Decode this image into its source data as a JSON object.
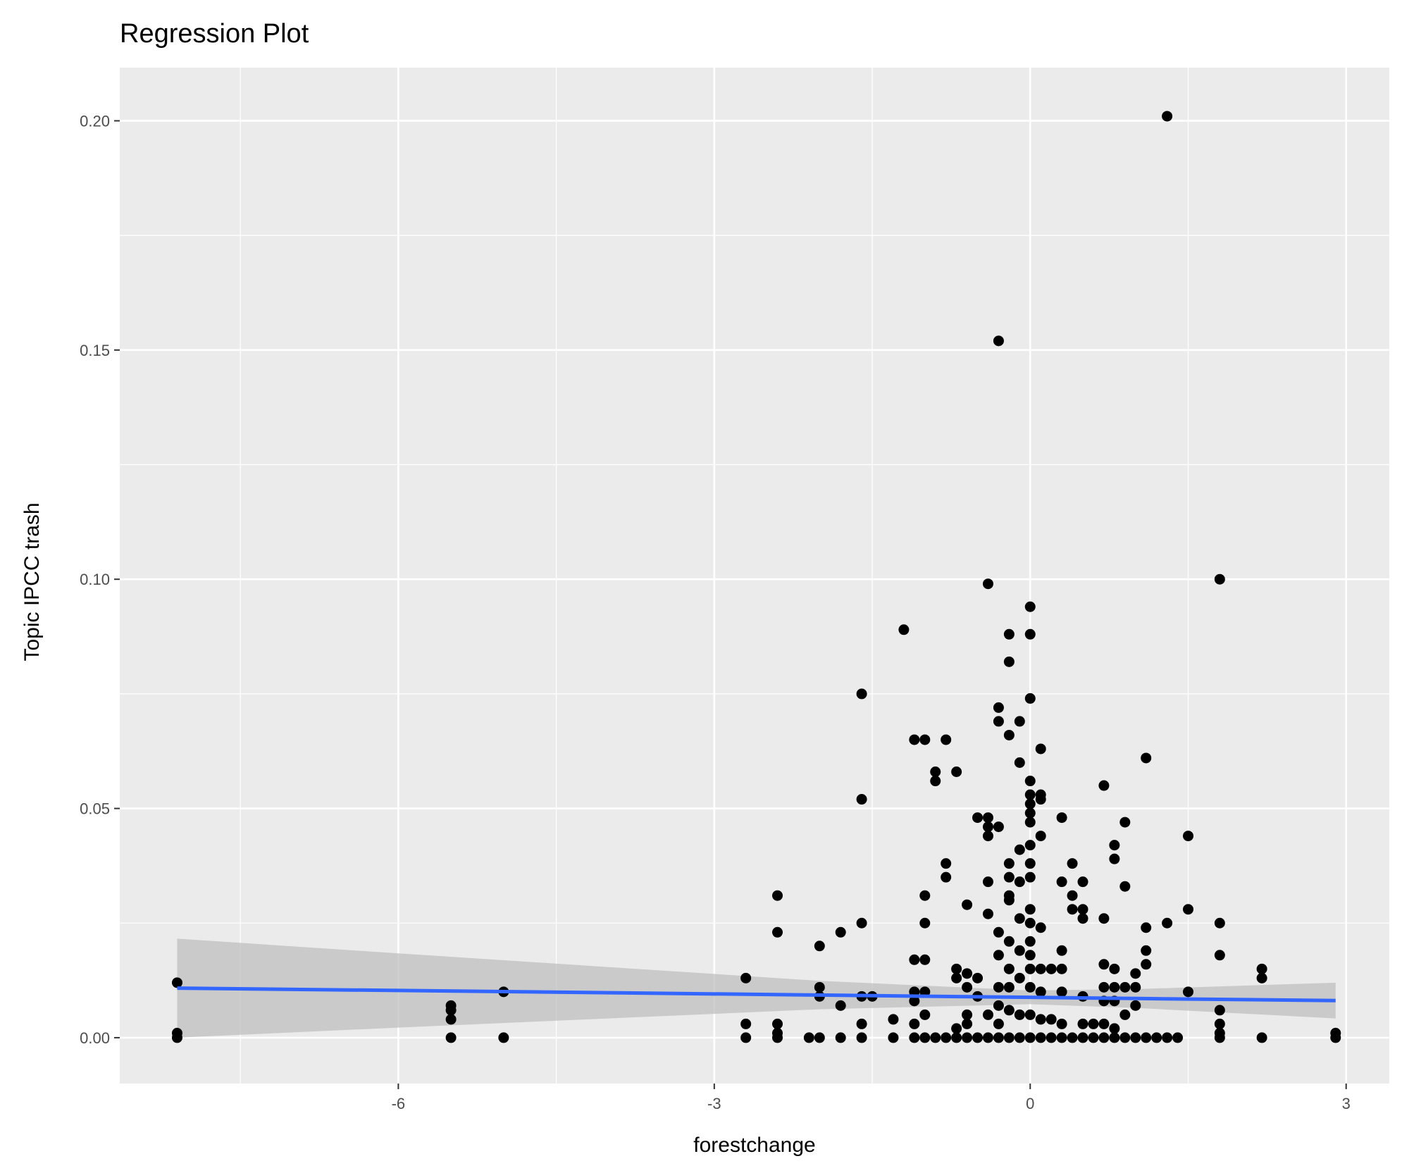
{
  "chart_data": {
    "type": "scatter",
    "title": "Regression Plot",
    "xlabel": "forestchange",
    "ylabel": "Topic IPCC trash",
    "xlim": [
      -8.645,
      3.41
    ],
    "ylim": [
      -0.01,
      0.2116
    ],
    "x_ticks": [
      -6,
      -3,
      0,
      3
    ],
    "x_tick_labels": [
      "-6",
      "-3",
      "0",
      "3"
    ],
    "y_ticks": [
      0.0,
      0.05,
      0.1,
      0.15,
      0.2
    ],
    "y_tick_labels": [
      "0.00",
      "0.05",
      "0.10",
      "0.15",
      "0.20"
    ],
    "grid": true,
    "colors": {
      "panel": "#ebebeb",
      "grid": "#ffffff",
      "points": "#000000",
      "fit_line": "#3366ff",
      "ci_band": "#bfbfbf"
    },
    "points_by_x": [
      {
        "x": -8.1,
        "y": [
          0.012,
          0.001,
          0
        ]
      },
      {
        "x": -5.5,
        "y": [
          0.007,
          0.006,
          0.004,
          0
        ]
      },
      {
        "x": -5.0,
        "y": [
          0.01,
          0
        ]
      },
      {
        "x": -2.7,
        "y": [
          0.013,
          0.003,
          0
        ]
      },
      {
        "x": -2.4,
        "y": [
          0.031,
          0.023,
          0.003,
          0.001,
          0
        ]
      },
      {
        "x": -2.1,
        "y": [
          0
        ]
      },
      {
        "x": -2.0,
        "y": [
          0.02,
          0.011,
          0.009,
          0
        ]
      },
      {
        "x": -1.8,
        "y": [
          0.023,
          0.007,
          0
        ]
      },
      {
        "x": -1.6,
        "y": [
          0.075,
          0.052,
          0.025,
          0.009,
          0.003,
          0
        ]
      },
      {
        "x": -1.5,
        "y": [
          0.009
        ]
      },
      {
        "x": -1.3,
        "y": [
          0.004,
          0
        ]
      },
      {
        "x": -1.2,
        "y": [
          0.089
        ]
      },
      {
        "x": -1.1,
        "y": [
          0.065,
          0.017,
          0.01,
          0.008,
          0.003,
          0
        ]
      },
      {
        "x": -1.0,
        "y": [
          0.065,
          0.031,
          0.025,
          0.017,
          0.01,
          0.005,
          0
        ]
      },
      {
        "x": -0.9,
        "y": [
          0.058,
          0.056,
          0
        ]
      },
      {
        "x": -0.8,
        "y": [
          0.065,
          0.038,
          0.035,
          0
        ]
      },
      {
        "x": -0.7,
        "y": [
          0.058,
          0.015,
          0.013,
          0.002,
          0
        ]
      },
      {
        "x": -0.6,
        "y": [
          0.029,
          0.014,
          0.011,
          0.005,
          0.003,
          0
        ]
      },
      {
        "x": -0.5,
        "y": [
          0.048,
          0.013,
          0.009,
          0
        ]
      },
      {
        "x": -0.4,
        "y": [
          0.099,
          0.048,
          0.046,
          0.044,
          0.034,
          0.027,
          0.005,
          0
        ]
      },
      {
        "x": -0.3,
        "y": [
          0.152,
          0.072,
          0.069,
          0.046,
          0.023,
          0.018,
          0.011,
          0.007,
          0.003,
          0
        ]
      },
      {
        "x": -0.2,
        "y": [
          0.088,
          0.082,
          0.066,
          0.038,
          0.035,
          0.031,
          0.03,
          0.021,
          0.015,
          0.011,
          0.006,
          0
        ]
      },
      {
        "x": -0.1,
        "y": [
          0.069,
          0.06,
          0.041,
          0.034,
          0.026,
          0.019,
          0.013,
          0.005,
          0
        ]
      },
      {
        "x": 0.0,
        "y": [
          0.094,
          0.088,
          0.074,
          0.056,
          0.053,
          0.051,
          0.049,
          0.047,
          0.042,
          0.038,
          0.035,
          0.028,
          0.025,
          0.021,
          0.018,
          0.015,
          0.011,
          0.005,
          0
        ]
      },
      {
        "x": 0.1,
        "y": [
          0.063,
          0.053,
          0.052,
          0.044,
          0.024,
          0.015,
          0.01,
          0.004,
          0
        ]
      },
      {
        "x": 0.2,
        "y": [
          0.015,
          0.004,
          0
        ]
      },
      {
        "x": 0.3,
        "y": [
          0.048,
          0.034,
          0.019,
          0.015,
          0.01,
          0.003,
          0
        ]
      },
      {
        "x": 0.4,
        "y": [
          0.038,
          0.031,
          0.028,
          0
        ]
      },
      {
        "x": 0.5,
        "y": [
          0.034,
          0.028,
          0.026,
          0.009,
          0.003,
          0
        ]
      },
      {
        "x": 0.6,
        "y": [
          0.003,
          0
        ]
      },
      {
        "x": 0.7,
        "y": [
          0.055,
          0.026,
          0.016,
          0.011,
          0.008,
          0.003,
          0
        ]
      },
      {
        "x": 0.8,
        "y": [
          0.042,
          0.039,
          0.015,
          0.011,
          0.008,
          0.002,
          0
        ]
      },
      {
        "x": 0.9,
        "y": [
          0.047,
          0.033,
          0.011,
          0.005,
          0
        ]
      },
      {
        "x": 1.0,
        "y": [
          0.014,
          0.011,
          0.007,
          0
        ]
      },
      {
        "x": 1.1,
        "y": [
          0.061,
          0.024,
          0.019,
          0.016,
          0
        ]
      },
      {
        "x": 1.2,
        "y": [
          0
        ]
      },
      {
        "x": 1.3,
        "y": [
          0.201,
          0.025,
          0
        ]
      },
      {
        "x": 1.4,
        "y": [
          0
        ]
      },
      {
        "x": 1.5,
        "y": [
          0.044,
          0.028,
          0.01
        ]
      },
      {
        "x": 1.8,
        "y": [
          0.1,
          0.025,
          0.018,
          0.006,
          0.003,
          0.001,
          0
        ]
      },
      {
        "x": 2.2,
        "y": [
          0.015,
          0.013,
          0
        ]
      },
      {
        "x": 2.9,
        "y": [
          0.001,
          0
        ]
      }
    ],
    "fit": {
      "x": [
        -8.1,
        -6,
        -4,
        -2,
        0,
        1,
        2.9
      ],
      "y": [
        0.0108,
        0.0103,
        0.0098,
        0.0093,
        0.0088,
        0.00855,
        0.0081
      ],
      "lower": [
        0.0,
        0.0022,
        0.0042,
        0.0062,
        0.0073,
        0.0065,
        0.0042
      ],
      "upper": [
        0.0216,
        0.0184,
        0.0154,
        0.0124,
        0.0103,
        0.0106,
        0.012
      ]
    }
  }
}
